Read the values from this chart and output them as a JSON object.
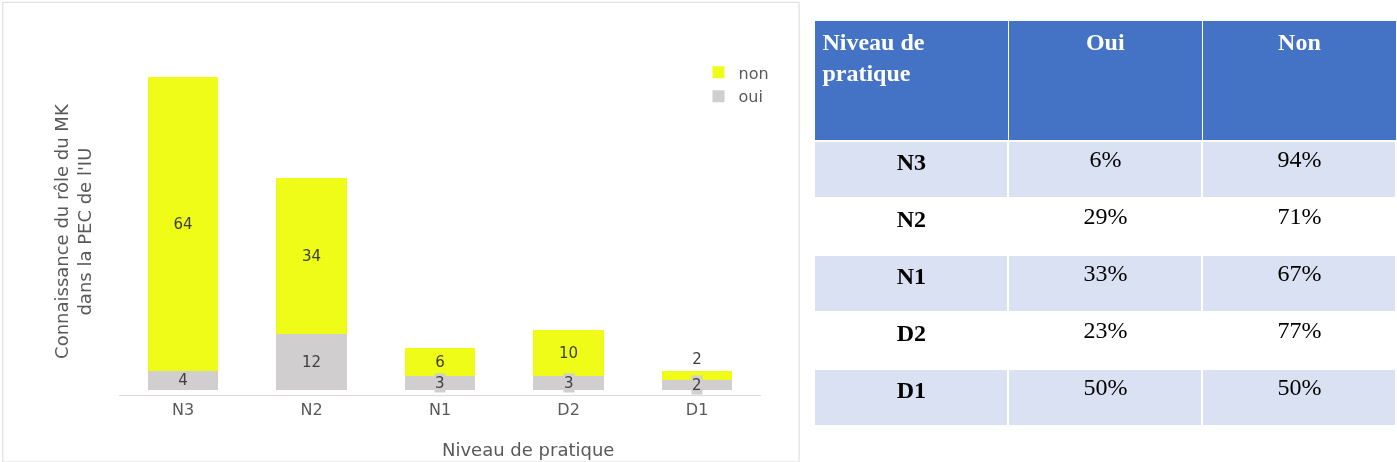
{
  "chart_data": [
    {
      "type": "bar",
      "stacked": true,
      "data_labels": true,
      "legend": "top right",
      "xlabel": "Niveau de pratique",
      "ylabel": "Connaissance du rôle du MK\ndans la PEC de l'IU",
      "categories": [
        "N3",
        "N2",
        "N1",
        "D2",
        "D1"
      ],
      "series": [
        {
          "name": "oui",
          "color": "#d0cece",
          "values": [
            4,
            12,
            3,
            3,
            2
          ]
        },
        {
          "name": "non",
          "color": "#eefc17",
          "values": [
            64,
            34,
            6,
            10,
            2
          ]
        }
      ]
    },
    {
      "type": "other",
      "categories": [
        "Niveau de\npratique",
        "Oui",
        "Non"
      ],
      "y_categories": [
        "N3",
        "N2",
        "N1",
        "D2",
        "D1"
      ],
      "cell_labels": [
        [
          "6%",
          "94%"
        ],
        [
          "29%",
          "71%"
        ],
        [
          "33%",
          "67%"
        ],
        [
          "23%",
          "77%"
        ],
        [
          "50%",
          "50%"
        ]
      ]
    }
  ]
}
